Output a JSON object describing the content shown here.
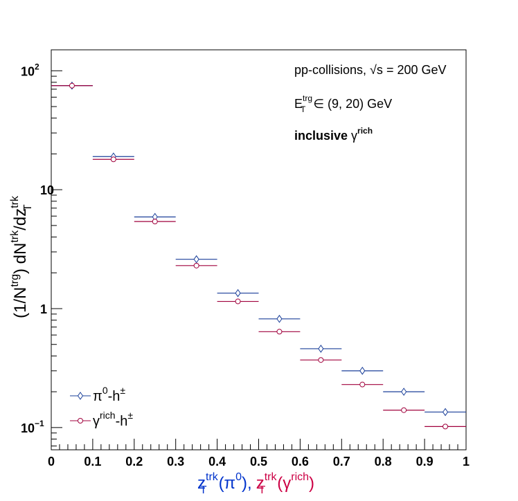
{
  "chart_data": {
    "type": "scatter",
    "log_y": true,
    "xlim": [
      0,
      1
    ],
    "ylim": [
      0.065,
      150
    ],
    "x_bin_width": 0.1,
    "x_ticks": [
      "0",
      "0.1",
      "0.2",
      "0.3",
      "0.4",
      "0.5",
      "0.6",
      "0.7",
      "0.8",
      "0.9",
      "1"
    ],
    "y_ticks": [
      {
        "value": 100,
        "base": "10",
        "exp": "2"
      },
      {
        "value": 10,
        "base": "10",
        "exp": ""
      },
      {
        "value": 1,
        "base": "1",
        "exp": ""
      },
      {
        "value": 0.1,
        "base": "10",
        "exp": "−1"
      }
    ],
    "ylabel": {
      "part1": "(1/N",
      "sup1": "trg",
      "part2": ") dN",
      "sup2": "trk",
      "part3": "/dz",
      "sub3": "T",
      "sup3": "trk"
    },
    "xlabel": [
      {
        "base": "z",
        "sub": "T",
        "sup": "trk",
        "paren": "(π",
        "paren_sup": "0",
        "close": "),",
        "color": "#0033cc"
      },
      {
        "base": "z",
        "sub": "T",
        "sup": "trk",
        "paren": "(γ",
        "paren_sup": "rich",
        "close": ")",
        "color": "#cc0044"
      }
    ],
    "annotations": {
      "line1_prefix": "pp-collisions, ",
      "line1_sqrt": "√s",
      "line1_suffix": " = 200 GeV",
      "line2_base": "E",
      "line2_sup": "trg",
      "line2_sub": "T",
      "line2_rest": " ∈ (9, 20) GeV",
      "line3_bold": "inclusive ",
      "line3_gamma": "γ",
      "line3_sup": "rich"
    },
    "series": [
      {
        "name_base": "π",
        "name_sup": "0",
        "name_rest": "-h",
        "name_rest_sup": "±",
        "color": "#1a3f99",
        "marker": "diamond",
        "x": [
          0.05,
          0.15,
          0.25,
          0.35,
          0.45,
          0.55,
          0.65,
          0.75,
          0.85,
          0.95
        ],
        "y": [
          75,
          19,
          5.9,
          2.6,
          1.35,
          0.82,
          0.46,
          0.3,
          0.2,
          0.135
        ]
      },
      {
        "name_base": "γ",
        "name_sup": "rich",
        "name_rest": "-h",
        "name_rest_sup": "±",
        "color": "#a0003c",
        "marker": "circle",
        "x": [
          0.05,
          0.15,
          0.25,
          0.35,
          0.45,
          0.55,
          0.65,
          0.75,
          0.85,
          0.95
        ],
        "y": [
          75,
          18,
          5.4,
          2.3,
          1.15,
          0.64,
          0.37,
          0.23,
          0.14,
          0.102
        ]
      }
    ]
  }
}
